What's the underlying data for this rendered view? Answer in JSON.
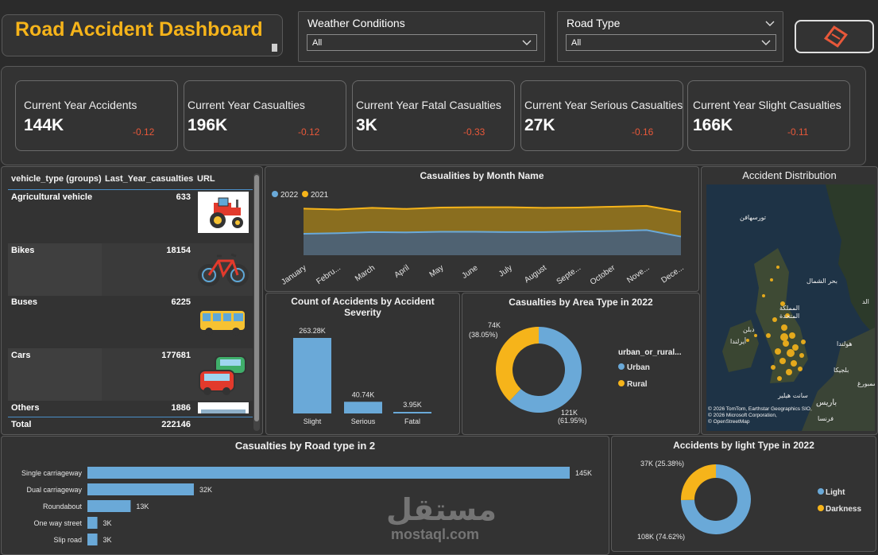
{
  "header": {
    "title": "Road Accident Dashboard"
  },
  "filters": [
    {
      "label": "Weather Conditions",
      "value": "All"
    },
    {
      "label": "Road Type",
      "value": "All"
    }
  ],
  "nav_button": {
    "icon": "diamond-nav-icon",
    "color": "#e8583a"
  },
  "kpis": [
    {
      "label": "Current Year Accidents",
      "value": "144K",
      "delta": "-0.12"
    },
    {
      "label": "Current Year Casualties",
      "value": "196K",
      "delta": "-0.12"
    },
    {
      "label": "Current Year Fatal Casualties",
      "value": "3K",
      "delta": "-0.33"
    },
    {
      "label": "Current Year Serious Casualties",
      "value": "27K",
      "delta": "-0.16"
    },
    {
      "label": "Current Year Slight Casualties",
      "value": "166K",
      "delta": "-0.11"
    }
  ],
  "vehicle_table": {
    "columns": [
      "vehicle_type (groups)",
      "Last_Year_casualties",
      "URL"
    ],
    "rows": [
      {
        "name": "Agricultural vehicle",
        "value": "633",
        "icon": "tractor-icon"
      },
      {
        "name": "Bikes",
        "value": "18154",
        "icon": "bicycle-icon"
      },
      {
        "name": "Buses",
        "value": "6225",
        "icon": "bus-icon"
      },
      {
        "name": "Cars",
        "value": "177681",
        "icon": "cars-icon"
      },
      {
        "name": "Others",
        "value": "1886",
        "icon": "others-icon"
      }
    ],
    "total": {
      "label": "Total",
      "value": "222146"
    }
  },
  "month_chart": {
    "title": "Casualities by Month Name",
    "legend": [
      {
        "name": "2022",
        "color": "#6aa9d8"
      },
      {
        "name": "2021",
        "color": "#f6b41a"
      }
    ]
  },
  "severity_chart": {
    "title": "Count of Accidents by Accident Severity"
  },
  "area_chart": {
    "title": "Casualties by Area Type in 2022",
    "legend_title": "urban_or_rural...",
    "top_label": "74K",
    "top_pct": "(38.05%)",
    "bottom_label": "121K",
    "bottom_pct": "(61.95%)"
  },
  "map": {
    "title": "Accident Distribution",
    "labels": {
      "tahir": "تورسهافن",
      "north_sea": "بحر الشمال",
      "uk1": "المملكة",
      "uk2": "المتحدة",
      "dublin": "دبلن",
      "ireland": "أيرلندا",
      "holland": "هولندا",
      "belgium": "بلجيكا",
      "paris": "باريس",
      "france": "فرنسا",
      "lux": "لوكسمبورغ",
      "saint_helier": "سانت هيلير",
      "dk": "الد",
      "c1": "© 2026 TomTom, Earthstar Geographics SIO,",
      "c2": "© 2026 Microsoft Corporation,",
      "c3": "© OpenStreetMap"
    }
  },
  "road_chart": {
    "title": "Casualties by Road type in 2"
  },
  "light_chart": {
    "title": "Accidents by light Type in 2022",
    "top_label": "37K (25.38%)",
    "bottom_label": "108K (74.62%)"
  },
  "watermark": {
    "arabic": "مستقل",
    "latin": "mostaql.com"
  },
  "colors": {
    "accent": "#f6b41a",
    "blue": "#6aa9d8",
    "negative": "#e8583a",
    "background": "#2b2b2b"
  },
  "chart_data": [
    {
      "type": "area",
      "title": "Casualities by Month Name",
      "categories": [
        "January",
        "Febru...",
        "March",
        "April",
        "May",
        "June",
        "July",
        "August",
        "Septe...",
        "October",
        "Nove...",
        "Dece..."
      ],
      "series": [
        {
          "name": "2021",
          "values": [
            16500,
            16200,
            16800,
            16400,
            16900,
            17000,
            17000,
            16800,
            16900,
            17200,
            17500,
            15400
          ]
        },
        {
          "name": "2022",
          "values": [
            7600,
            7800,
            8200,
            8100,
            8300,
            8300,
            8200,
            8200,
            8400,
            8600,
            8900,
            6600
          ]
        }
      ],
      "grid": false,
      "legend": "top-left"
    },
    {
      "type": "bar",
      "title": "Count of Accidents by Accident Severity",
      "categories": [
        "Slight",
        "Serious",
        "Fatal"
      ],
      "values": [
        263280,
        40740,
        3950
      ],
      "labels": [
        "263.28K",
        "40.74K",
        "3.95K"
      ]
    },
    {
      "type": "pie",
      "title": "Casualties by Area Type in 2022",
      "series": [
        {
          "name": "Urban",
          "value": 121,
          "percent": 61.95,
          "color": "#6aa9d8"
        },
        {
          "name": "Rural",
          "value": 74,
          "percent": 38.05,
          "color": "#f6b41a"
        }
      ],
      "legend": "right"
    },
    {
      "type": "bar",
      "title": "Casualties by Road type in 2",
      "orientation": "horizontal",
      "categories": [
        "Single carriageway",
        "Dual carriageway",
        "Roundabout",
        "One way street",
        "Slip road"
      ],
      "values": [
        145,
        32,
        13,
        3,
        3
      ],
      "labels": [
        "145K",
        "32K",
        "13K",
        "3K",
        "3K"
      ]
    },
    {
      "type": "pie",
      "title": "Accidents by light Type in 2022",
      "series": [
        {
          "name": "Light",
          "value": 108,
          "percent": 74.62,
          "color": "#6aa9d8"
        },
        {
          "name": "Darkness",
          "value": 37,
          "percent": 25.38,
          "color": "#f6b41a"
        }
      ],
      "legend": "right"
    }
  ]
}
